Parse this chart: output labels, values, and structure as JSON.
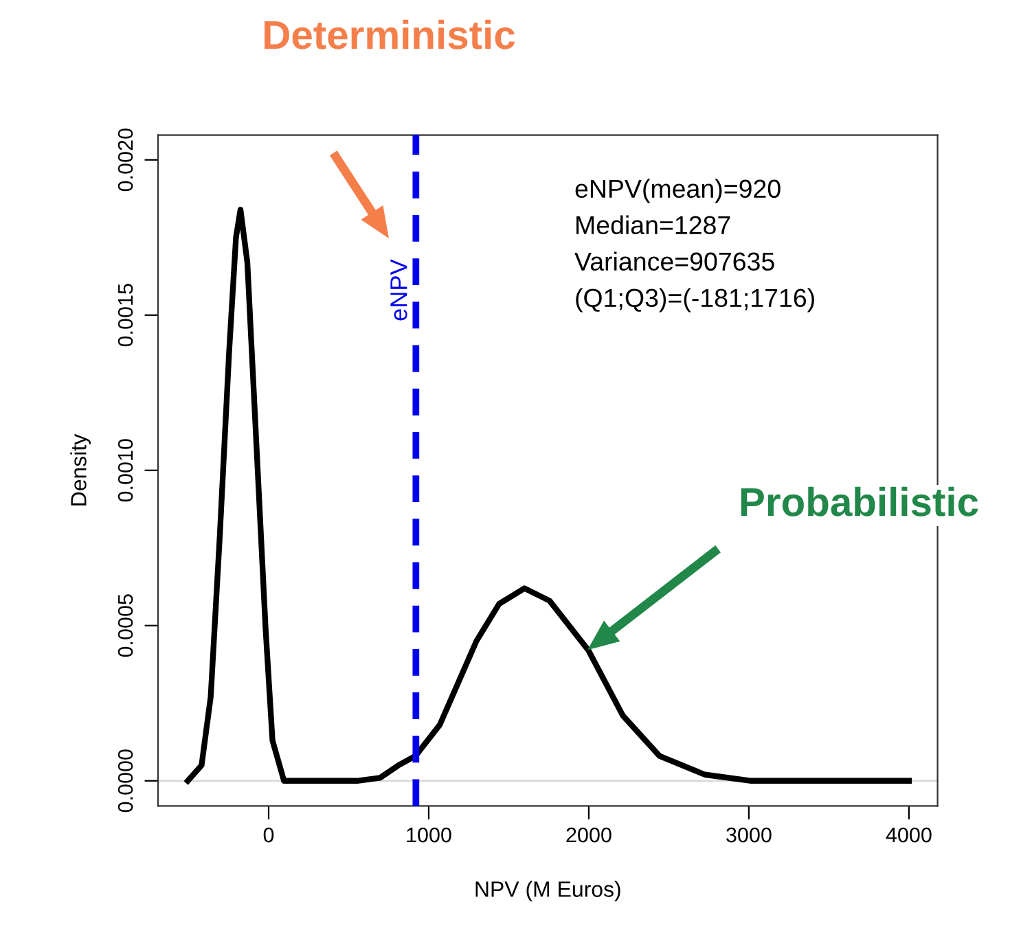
{
  "chart_data": {
    "type": "line",
    "xlabel": "NPV (M Euros)",
    "ylabel": "Density",
    "xlim": [
      -691,
      4179
    ],
    "ylim": [
      -8.1e-05,
      0.00208
    ],
    "xticks": [
      0,
      1000,
      2000,
      3000,
      4000
    ],
    "yticks": [
      {
        "value": 0,
        "label": "0.0000"
      },
      {
        "value": 0.0005,
        "label": "0.0005"
      },
      {
        "value": 0.001,
        "label": "0.0010"
      },
      {
        "value": 0.0015,
        "label": "0.0015"
      },
      {
        "value": 0.002,
        "label": "0.0020"
      }
    ],
    "grid": false,
    "legend": false,
    "marker": "none",
    "line_style": "solid",
    "series": [
      {
        "color": "#000000",
        "x": [
          -505,
          -419,
          -362,
          -305,
          -247,
          -204,
          -176,
          -133,
          -76,
          -19,
          24,
          96,
          553,
          697,
          811,
          917,
          1069,
          1298,
          1440,
          1598,
          1755,
          1998,
          2213,
          2442,
          2725,
          3015,
          4000
        ],
        "values": [
          0,
          5e-05,
          0.00027,
          0.00079,
          0.00138,
          0.00175,
          0.00184,
          0.00167,
          0.00108,
          0.00049,
          0.00013,
          0,
          0,
          1e-05,
          5e-05,
          8e-05,
          0.00018,
          0.00045,
          0.00057,
          0.00062,
          0.00058,
          0.00042,
          0.00021,
          8e-05,
          2e-05,
          0,
          0
        ]
      }
    ],
    "ref_lines": [
      {
        "axis": "x",
        "value": 920,
        "label": "eNPV",
        "color": "#0000ee",
        "line_style": "dashed"
      },
      {
        "axis": "y",
        "value": 0,
        "color": "#d9d9d9",
        "line_style": "solid"
      }
    ],
    "annotations": [
      "eNPV(mean)=920",
      "Median=1287",
      "Variance=907635",
      "(Q1;Q3)=(-181;1716)",
      "Deterministic",
      "Probabilistic"
    ]
  }
}
